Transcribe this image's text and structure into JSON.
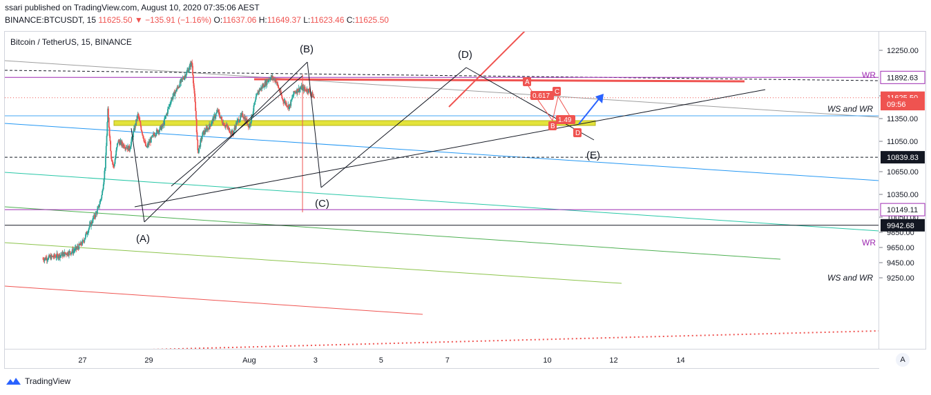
{
  "header": {
    "publisher_line": "ssari published on TradingView.com, August 10, 2020 07:35:06 AEST",
    "symbol": "BINANCE:BTCUSDT, 15",
    "last": "11625.50",
    "change": "▼ −135.91 (−1.16%)",
    "o_label": "O:",
    "o_value": "11637.06",
    "h_label": "H:",
    "h_value": "11649.37",
    "l_label": "L:",
    "l_value": "11623.46",
    "c_label": "C:",
    "c_value": "11625.50"
  },
  "chart_title": "Bitcoin / TetherUS, 15, BINANCE",
  "footer": {
    "brand": "TradingView"
  },
  "axis_button": "A",
  "colors": {
    "up": "#26a69a",
    "down": "#ef5350",
    "wave": "#131722",
    "resistance": "#ef5350",
    "support_band": "#e3e33a",
    "arrow": "#2962ff",
    "purple": "#9c27b0",
    "blue_channel": "#2196f3",
    "green_channel": "#4caf50"
  },
  "chart_data": {
    "type": "candlestick",
    "symbol": "BTCUSDT",
    "timeframe": "15",
    "y_ticks": [
      12250,
      11650,
      11350,
      11050,
      10650,
      10350,
      10050,
      9850,
      9650,
      9450,
      9250
    ],
    "y_tick_labels": [
      "12250.00",
      "11650.00",
      "11350.00",
      "11050.00",
      "10650.00",
      "10350.00",
      "10050.00",
      "9850.00",
      "9650.00",
      "9450.00",
      "9250.00"
    ],
    "x_ticks": [
      "27",
      "29",
      "Aug",
      "3",
      "5",
      "7",
      "10",
      "12",
      "14"
    ],
    "ylim": [
      9220,
      12330
    ],
    "price_badges": [
      {
        "label": "11892.63",
        "value": 11892.63,
        "style": "purple"
      },
      {
        "label": "11625.50",
        "value": 11625.5,
        "style": "red"
      },
      {
        "label": "09:56",
        "value": 11540,
        "style": "red"
      },
      {
        "label": "10839.83",
        "value": 10839.83,
        "style": "black"
      },
      {
        "label": "10149.11",
        "value": 10149.11,
        "style": "purple"
      },
      {
        "label": "9942.68",
        "value": 9942.68,
        "style": "black"
      }
    ],
    "horizontal_levels": [
      {
        "value": 11892.63,
        "label": "WR",
        "color": "purple"
      },
      {
        "value": 10149.11,
        "label": "WR",
        "color": "purple"
      },
      {
        "value": 9942.68,
        "label": "WS and WR",
        "color": "black"
      },
      {
        "value": 10839.83,
        "label": "",
        "color": "black-dashed"
      }
    ],
    "annotations": [
      "(A)",
      "(B)",
      "(C)",
      "(D)",
      "(E)",
      "WR",
      "WS and WR",
      "WS and WR",
      "WR",
      "A",
      "B",
      "C",
      "D",
      "0.617",
      "1.49"
    ],
    "wave_points": [
      {
        "label": "(A)",
        "date": "Jul 28",
        "value": 10380
      },
      {
        "label": "(B)",
        "date": "Aug 2",
        "value": 12140
      },
      {
        "label": "(C)",
        "date": "Aug 3",
        "value": 10760
      },
      {
        "label": "(D)",
        "date": "Aug 7",
        "value": 12100
      },
      {
        "label": "(E)",
        "date": "Aug 11",
        "value": 11350
      }
    ],
    "grid": false,
    "legend": "none"
  }
}
